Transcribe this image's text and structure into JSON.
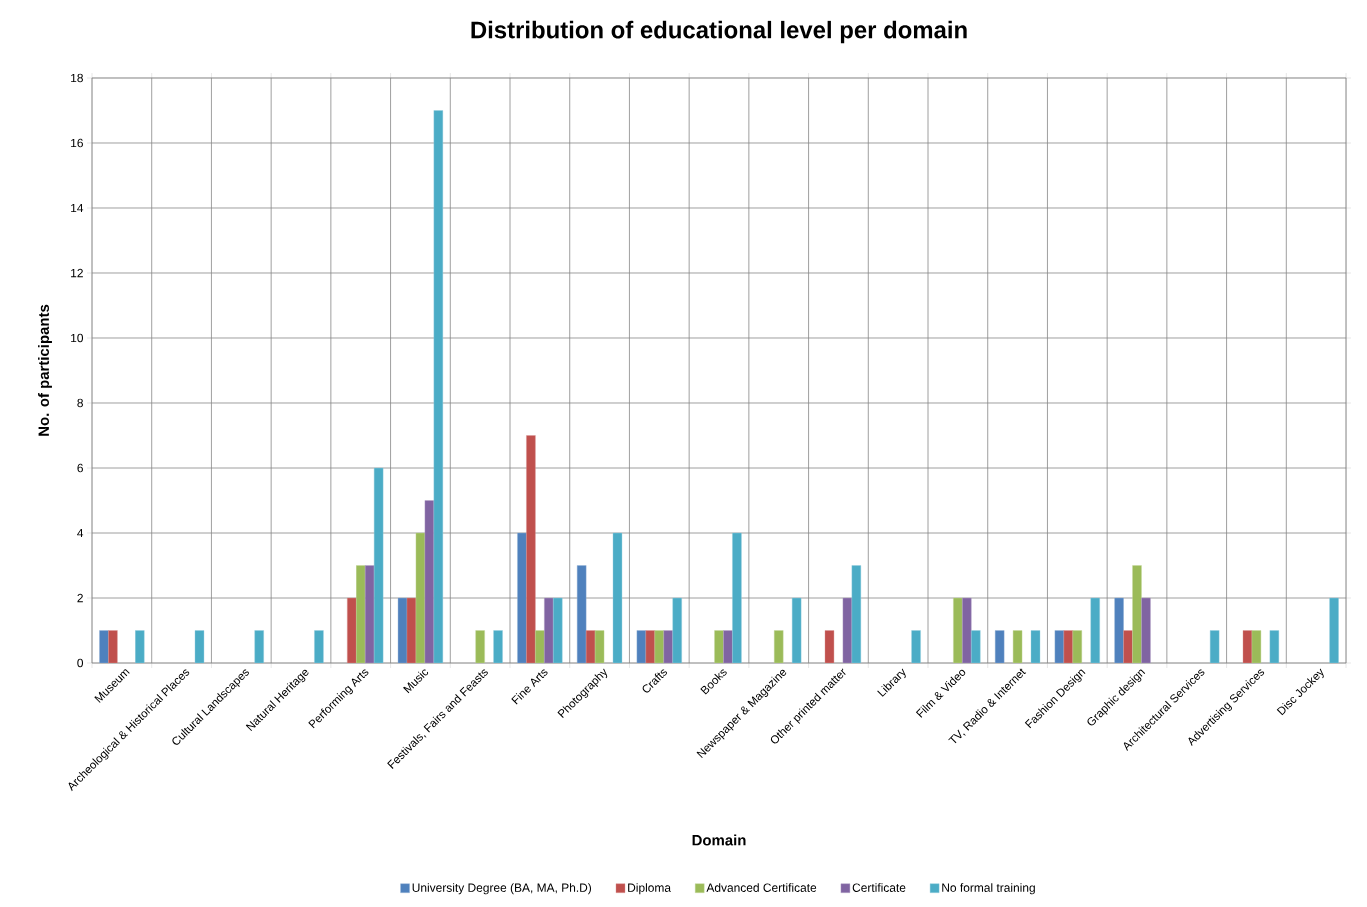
{
  "chart_data": {
    "type": "bar",
    "title": "Distribution of educational level per domain",
    "xlabel": "Domain",
    "ylabel": "No. of participants",
    "categories": [
      "Museum",
      "Archeological & Historical Places",
      "Cultural Landscapes",
      "Natural Heritage",
      "Performing Arts",
      "Music",
      "Festivals, Fairs and Feasts",
      "Fine Arts",
      "Photography",
      "Crafts",
      "Books",
      "Newspaper & Magazine",
      "Other printed matter",
      "Library",
      "Film & Video",
      "TV, Radio & Internet",
      "Fashion Design",
      "Graphic design",
      "Architectural Services",
      "Advertising Services",
      "Disc Jockey"
    ],
    "series": [
      {
        "name": "University Degree (BA, MA, Ph.D)",
        "color": "#4f81bd",
        "values": [
          1,
          null,
          null,
          null,
          null,
          2,
          null,
          4,
          3,
          1,
          null,
          null,
          null,
          null,
          null,
          1,
          1,
          2,
          null,
          null,
          null
        ]
      },
      {
        "name": "Diploma",
        "color": "#c0504d",
        "values": [
          1,
          null,
          null,
          null,
          2,
          2,
          null,
          7,
          1,
          1,
          null,
          null,
          1,
          null,
          null,
          null,
          1,
          1,
          null,
          1,
          null
        ]
      },
      {
        "name": "Advanced Certificate",
        "color": "#9bbb59",
        "values": [
          null,
          null,
          null,
          null,
          3,
          4,
          1,
          1,
          1,
          1,
          1,
          1,
          null,
          null,
          2,
          1,
          1,
          3,
          null,
          1,
          null
        ]
      },
      {
        "name": "Certificate",
        "color": "#8064a2",
        "values": [
          null,
          null,
          null,
          null,
          3,
          5,
          null,
          2,
          null,
          1,
          1,
          null,
          2,
          null,
          2,
          null,
          null,
          2,
          null,
          null,
          null
        ]
      },
      {
        "name": "No formal training",
        "color": "#4bacc6",
        "values": [
          1,
          1,
          1,
          1,
          6,
          17,
          1,
          2,
          4,
          2,
          4,
          2,
          3,
          1,
          1,
          1,
          2,
          null,
          1,
          1,
          2
        ]
      }
    ],
    "ylim": [
      0,
      18
    ],
    "yticks": [
      0,
      2,
      4,
      6,
      8,
      10,
      12,
      14,
      16,
      18
    ],
    "grid": true,
    "legend": "bottom"
  }
}
